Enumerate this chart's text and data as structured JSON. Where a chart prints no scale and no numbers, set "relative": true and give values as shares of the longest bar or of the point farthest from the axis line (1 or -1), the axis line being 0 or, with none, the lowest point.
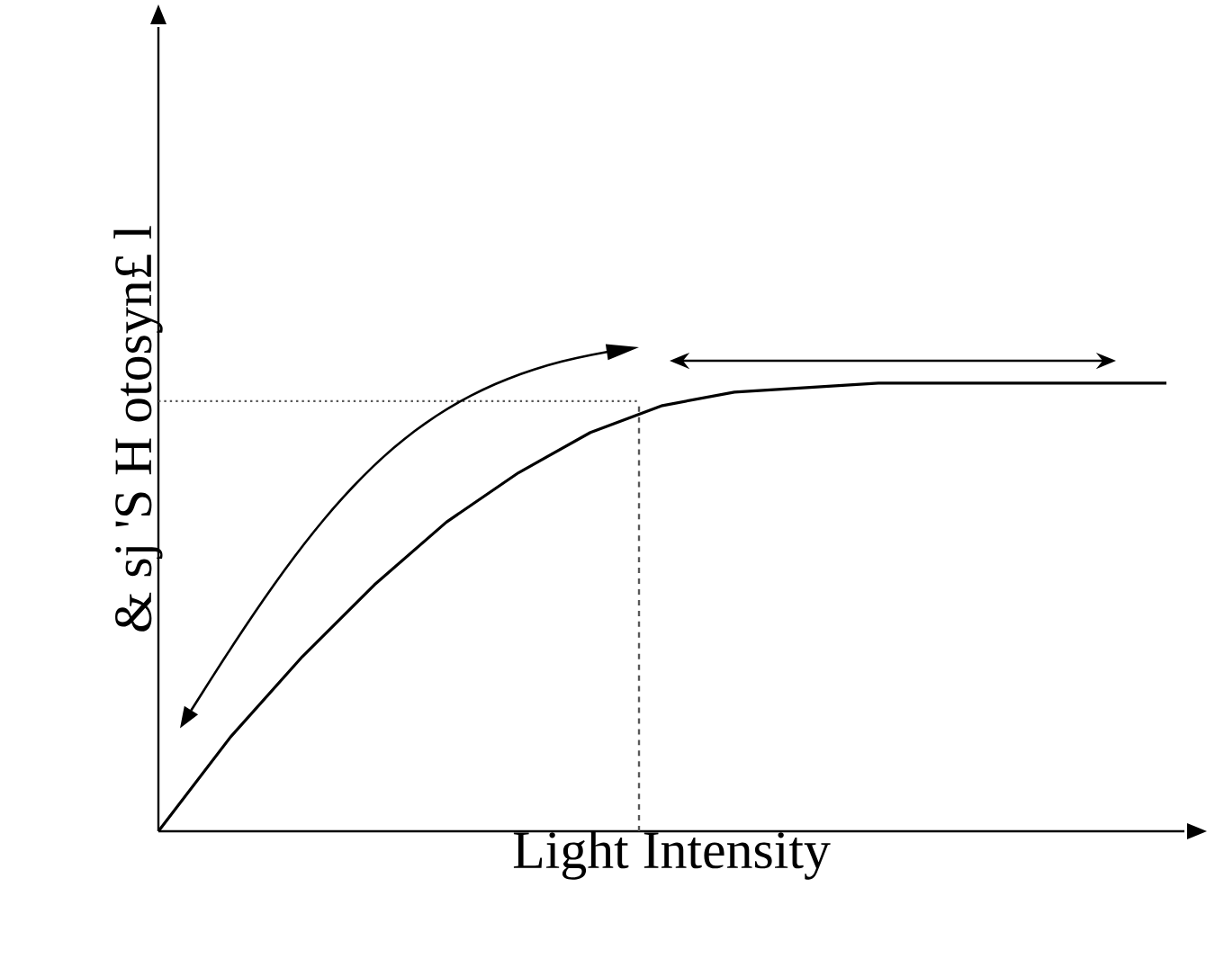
{
  "chart_data": {
    "type": "line",
    "xlabel": "Light Intensity",
    "ylabel": "& sj 'S H otosyn£ l",
    "relative": true,
    "categories": [
      null,
      null,
      null,
      null,
      null,
      null,
      null,
      null,
      null,
      null,
      null,
      null,
      null,
      null,
      null
    ],
    "series": [
      {
        "color": "#000000",
        "values": [
          0,
          0.21,
          0.39,
          0.55,
          0.69,
          0.8,
          0.89,
          0.95,
          0.98,
          0.99,
          1,
          1,
          1,
          1,
          1
        ]
      }
    ],
    "ref_lines": [
      {
        "axis": "y",
        "value": 0.96,
        "line_style": "dotted"
      }
    ],
    "marker": "none",
    "line_style": "solid"
  }
}
